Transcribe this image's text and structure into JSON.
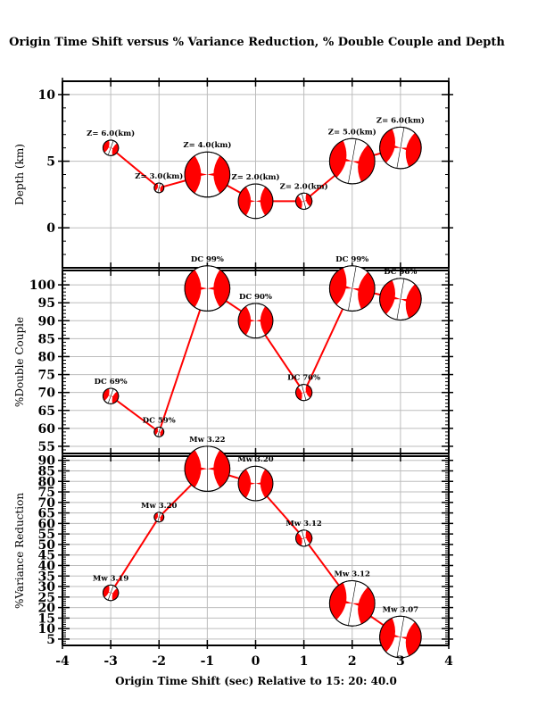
{
  "page": {
    "title": "Origin Time Shift versus % Variance Reduction, % Double Couple and Depth",
    "xlabel": "Origin Time Shift (sec) Relative to 15: 20: 40.0"
  },
  "colors": {
    "series": "#ff0000",
    "grid": "#bdbdbd",
    "beachball_fill": "#ff0000"
  },
  "chart_data": [
    {
      "type": "scatter",
      "name": "depth",
      "ylabel": "Depth (km)",
      "xlim": [
        -4,
        4
      ],
      "ylim": [
        -3,
        11
      ],
      "x_ticks": [
        -4,
        -3,
        -2,
        -1,
        0,
        1,
        2,
        3,
        4
      ],
      "y_ticks": [
        0,
        5,
        10
      ],
      "x": [
        -3,
        -2,
        -1,
        0,
        1,
        2,
        3
      ],
      "y": [
        6.0,
        3.0,
        4.0,
        2.0,
        2.0,
        5.0,
        6.0
      ],
      "labels": [
        "Z= 6.0(km)",
        "Z= 3.0(km)",
        "Z= 4.0(km)",
        "Z= 2.0(km)",
        "Z= 2.0(km)",
        "Z= 5.0(km)",
        "Z= 6.0(km)"
      ],
      "marker_size": [
        0.69,
        0.59,
        0.99,
        0.9,
        0.7,
        0.99,
        0.96
      ],
      "marker_rotation_deg": [
        20,
        15,
        0,
        0,
        -15,
        10,
        10
      ]
    },
    {
      "type": "scatter",
      "name": "double-couple",
      "ylabel": "%Double Couple",
      "xlim": [
        -4,
        4
      ],
      "ylim": [
        53,
        104
      ],
      "x_ticks": [
        -4,
        -3,
        -2,
        -1,
        0,
        1,
        2,
        3,
        4
      ],
      "y_ticks": [
        55,
        60,
        65,
        70,
        75,
        80,
        85,
        90,
        95,
        100
      ],
      "x": [
        -3,
        -2,
        -1,
        0,
        1,
        2,
        3
      ],
      "y": [
        69,
        59,
        99,
        90,
        70,
        99,
        96
      ],
      "labels": [
        "DC 69%",
        "DC 59%",
        "DC 99%",
        "DC 90%",
        "DC 70%",
        "DC 99%",
        "DC 96%"
      ],
      "marker_size": [
        0.69,
        0.59,
        0.99,
        0.9,
        0.7,
        0.99,
        0.96
      ],
      "marker_rotation_deg": [
        20,
        15,
        0,
        0,
        -15,
        10,
        10
      ]
    },
    {
      "type": "scatter",
      "name": "variance-reduction",
      "ylabel": "%Variance Reduction",
      "xlim": [
        -4,
        4
      ],
      "ylim": [
        2,
        92
      ],
      "x_ticks": [
        -4,
        -3,
        -2,
        -1,
        0,
        1,
        2,
        3,
        4
      ],
      "y_ticks": [
        5,
        10,
        15,
        20,
        25,
        30,
        35,
        40,
        45,
        50,
        55,
        60,
        65,
        70,
        75,
        80,
        85,
        90
      ],
      "x": [
        -3,
        -2,
        -1,
        0,
        1,
        2,
        3
      ],
      "y": [
        27,
        63,
        86,
        79,
        53,
        22,
        6
      ],
      "labels": [
        "Mw 3.19",
        "Mw 3.20",
        "Mw 3.22",
        "Mw 3.20",
        "Mw 3.12",
        "Mw 3.12",
        "Mw 3.07"
      ],
      "marker_size": [
        0.69,
        0.59,
        0.99,
        0.9,
        0.7,
        0.99,
        0.96
      ],
      "marker_rotation_deg": [
        20,
        15,
        0,
        0,
        -15,
        10,
        10
      ]
    }
  ]
}
